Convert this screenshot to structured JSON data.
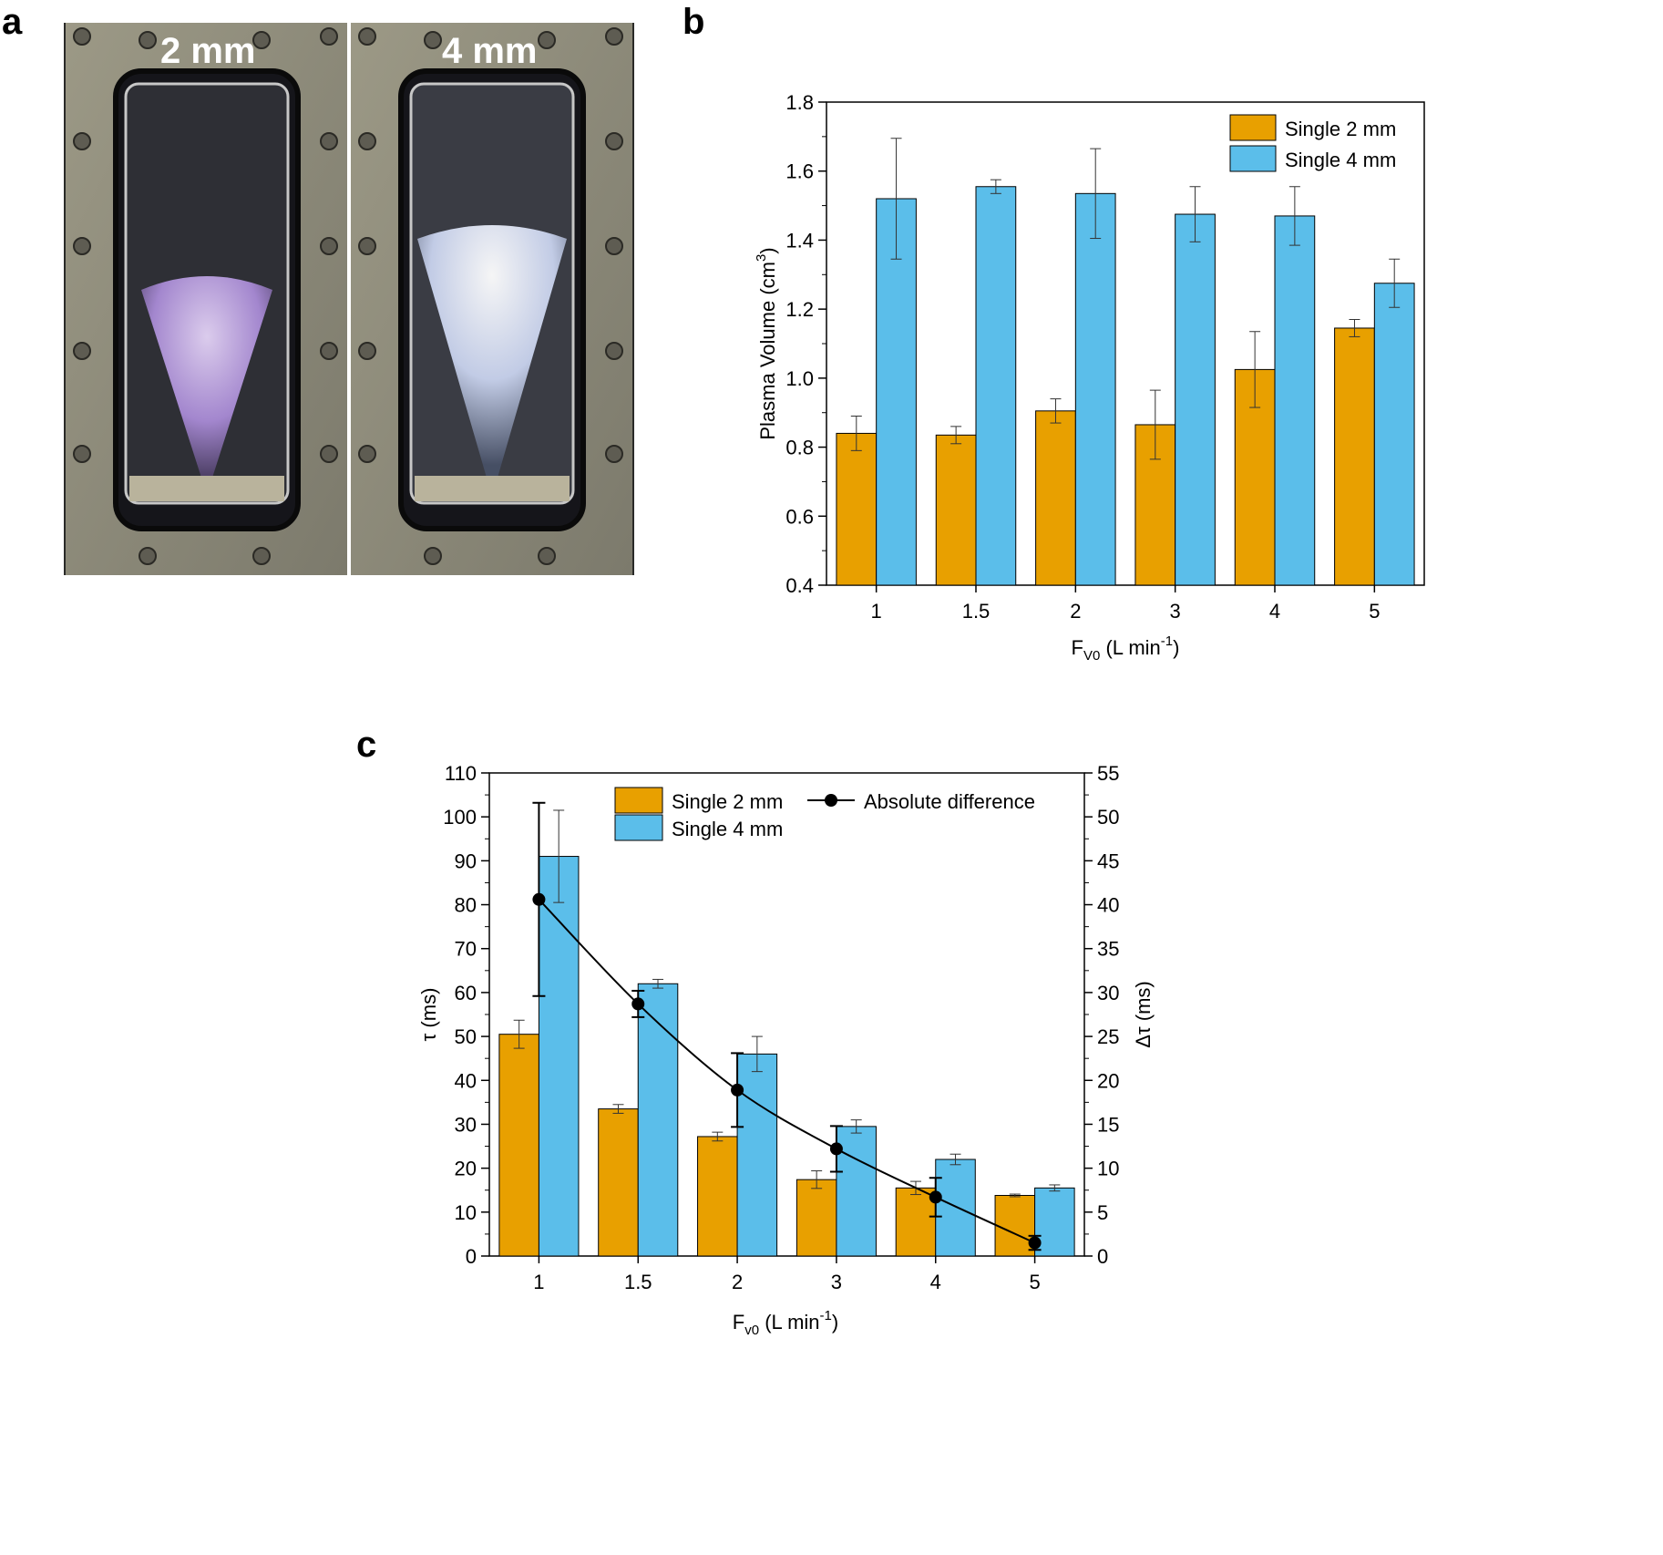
{
  "panels": {
    "a": "a",
    "b": "b",
    "c": "c"
  },
  "photo": {
    "label_left": "2 mm",
    "label_right": "4 mm",
    "colors": {
      "frame": "#8f8c7c",
      "plasma_left": "#c9b3e6",
      "plasma_right": "#e9eefc",
      "window": "#1c1c1f"
    }
  },
  "colors": {
    "orange": "#E8A000",
    "blue": "#5BBEEA",
    "line": "#000000"
  },
  "chart_data": [
    {
      "id": "b",
      "type": "bar",
      "categories": [
        "1",
        "1.5",
        "2",
        "3",
        "4",
        "5"
      ],
      "series": [
        {
          "name": "Single 2 mm",
          "values": [
            0.84,
            0.835,
            0.905,
            0.865,
            1.025,
            1.145
          ],
          "errors": [
            0.05,
            0.025,
            0.035,
            0.1,
            0.11,
            0.025
          ],
          "color": "#E8A000"
        },
        {
          "name": "Single 4 mm",
          "values": [
            1.52,
            1.555,
            1.535,
            1.475,
            1.47,
            1.275
          ],
          "errors": [
            0.175,
            0.02,
            0.13,
            0.08,
            0.085,
            0.07
          ],
          "color": "#5BBEEA"
        }
      ],
      "xlabel": {
        "main": "F",
        "sub": "V0",
        "unit_pre": " (L min",
        "unit_sup": "-1",
        "unit_post": ")"
      },
      "ylabel": {
        "pre": "Plasma Volume (cm",
        "sup": "3",
        "post": ")"
      },
      "ylim": [
        0.4,
        1.8
      ],
      "yticks": [
        "0.4",
        "0.6",
        "0.8",
        "1.0",
        "1.2",
        "1.4",
        "1.6",
        "1.8"
      ],
      "legend_position": "top-right"
    },
    {
      "id": "c",
      "type": "bar",
      "categories": [
        "1",
        "1.5",
        "2",
        "3",
        "4",
        "5"
      ],
      "series": [
        {
          "name": "Single 2 mm",
          "values": [
            50.5,
            33.5,
            27.2,
            17.4,
            15.5,
            13.8
          ],
          "errors": [
            3.2,
            1.0,
            1.0,
            2.0,
            1.5,
            0.3
          ],
          "color": "#E8A000",
          "axis": "left"
        },
        {
          "name": "Single 4 mm",
          "values": [
            91.0,
            62.0,
            46.0,
            29.5,
            22.0,
            15.5
          ],
          "errors": [
            10.5,
            1.0,
            4.0,
            1.5,
            1.2,
            0.7
          ],
          "color": "#5BBEEA",
          "axis": "left"
        },
        {
          "name": "Absolute difference",
          "type": "line",
          "values": [
            40.6,
            28.7,
            18.9,
            12.2,
            6.7,
            1.5
          ],
          "errors": [
            11.0,
            1.5,
            4.2,
            2.6,
            2.2,
            0.8
          ],
          "color": "#000000",
          "axis": "right"
        }
      ],
      "xlabel": {
        "main": "F",
        "sub": "v0",
        "unit_pre": " (L min",
        "unit_sup": "-1",
        "unit_post": ")"
      },
      "ylabel_left": "τ (ms)",
      "ylabel_right": "Δτ (ms)",
      "ylim_left": [
        0,
        110
      ],
      "ylim_right": [
        0,
        55
      ],
      "yticks_left": [
        "0",
        "10",
        "20",
        "30",
        "40",
        "50",
        "60",
        "70",
        "80",
        "90",
        "100",
        "110"
      ],
      "yticks_right": [
        "0",
        "5",
        "10",
        "15",
        "20",
        "25",
        "30",
        "35",
        "40",
        "45",
        "50",
        "55"
      ],
      "legend_position": "top-right"
    }
  ]
}
